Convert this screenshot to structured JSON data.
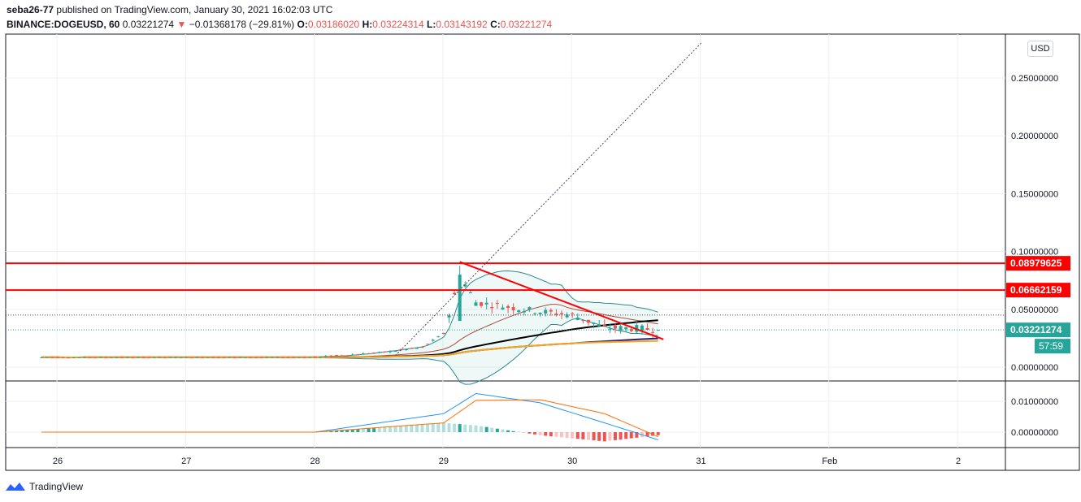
{
  "header": {
    "author": "seba26-77",
    "published_text": "published on TradingView.com, January 30, 2021 16:02:03 UTC",
    "symbol": "BINANCE:DOGEUSD, 60",
    "last_price": "0.03221274",
    "change_arrow": "▼",
    "change": "−0.01368178 (−29.81%)",
    "open_label": "O:",
    "open": "0.03186020",
    "high_label": "H:",
    "high": "0.03224314",
    "low_label": "L:",
    "low": "0.03143192",
    "close_label": "C:",
    "close": "0.03221274"
  },
  "currency_button": "USD",
  "price_axis": {
    "ticks": [
      {
        "value": 0.25,
        "label": "0.25000000"
      },
      {
        "value": 0.2,
        "label": "0.20000000"
      },
      {
        "value": 0.15,
        "label": "0.15000000"
      },
      {
        "value": 0.1,
        "label": "0.10000000"
      },
      {
        "value": 0.05,
        "label": "0.05000000"
      },
      {
        "value": 0.0,
        "label": "0.00000000"
      }
    ],
    "badges": [
      {
        "value": 0.08979625,
        "label": "0.08979625",
        "color": "#ff0000"
      },
      {
        "value": 0.06662159,
        "label": "0.06662159",
        "color": "#ff0000"
      },
      {
        "value": 0.03221274,
        "label": "0.03221274",
        "color": "#26a69a"
      }
    ],
    "countdown": "57:59"
  },
  "macd_axis": {
    "ticks": [
      {
        "value": 0.01,
        "label": "0.01000000"
      },
      {
        "value": 0.0,
        "label": "0.00000000"
      }
    ]
  },
  "time_axis": {
    "labels": [
      "26",
      "27",
      "28",
      "29",
      "30",
      "31",
      "Feb",
      "2"
    ]
  },
  "colors": {
    "up": "#26a69a",
    "down": "#ef5350",
    "horizontal_levels": "#ff0000",
    "trendline": "#ff0000",
    "ma_black": "#000000",
    "ma_navy": "#2a1e7a",
    "ma_orange": "#f5a623",
    "bollinger": "#2e8b8b",
    "macd_line": "#2196f3",
    "signal_line": "#ff6d00",
    "hist_up": "#26a69a",
    "hist_down": "#ef5350"
  },
  "chart_data": {
    "type": "candlestick",
    "symbol": "BINANCE:DOGEUSD",
    "interval": "60",
    "y_range": [
      -0.012,
      0.28
    ],
    "x_range": [
      "Jan 25 21:00",
      "Feb 2 09:00"
    ],
    "horizontal_levels": [
      0.08979625,
      0.06662159
    ],
    "last_price": 0.03221274,
    "descending_trendline": {
      "from": [
        "Jan 29 03:00",
        0.091
      ],
      "to": [
        "Jan 30 17:00",
        0.024
      ]
    },
    "ascending_dotted_line": {
      "from": [
        "Jan 28 15:00",
        0.01
      ],
      "to": [
        "Jan 31 00:00",
        0.28
      ]
    },
    "price_series_summary": [
      {
        "time": "Jan 28 00:00",
        "close": 0.0085
      },
      {
        "time": "Jan 28 12:00",
        "close": 0.0125
      },
      {
        "time": "Jan 28 20:00",
        "close": 0.017
      },
      {
        "time": "Jan 29 00:00",
        "close": 0.029
      },
      {
        "time": "Jan 29 03:00",
        "close": 0.079
      },
      {
        "time": "Jan 29 06:00",
        "close": 0.056
      },
      {
        "time": "Jan 29 12:00",
        "close": 0.052
      },
      {
        "time": "Jan 29 18:00",
        "close": 0.048
      },
      {
        "time": "Jan 30 00:00",
        "close": 0.045
      },
      {
        "time": "Jan 30 06:00",
        "close": 0.034
      },
      {
        "time": "Jan 30 12:00",
        "close": 0.0336
      },
      {
        "time": "Jan 30 16:00",
        "close": 0.03221274
      }
    ],
    "macd_summary": [
      {
        "time": "Jan 28 00:00",
        "macd": 0.0,
        "signal": 0.0
      },
      {
        "time": "Jan 29 00:00",
        "macd": 0.006,
        "signal": 0.003
      },
      {
        "time": "Jan 29 06:00",
        "macd": 0.0125,
        "signal": 0.0103
      },
      {
        "time": "Jan 29 18:00",
        "macd": 0.0095,
        "signal": 0.0105
      },
      {
        "time": "Jan 30 06:00",
        "macd": 0.003,
        "signal": 0.006
      },
      {
        "time": "Jan 30 16:00",
        "macd": -0.0025,
        "signal": -0.0015
      }
    ]
  },
  "footer": {
    "brand": "TradingView"
  }
}
